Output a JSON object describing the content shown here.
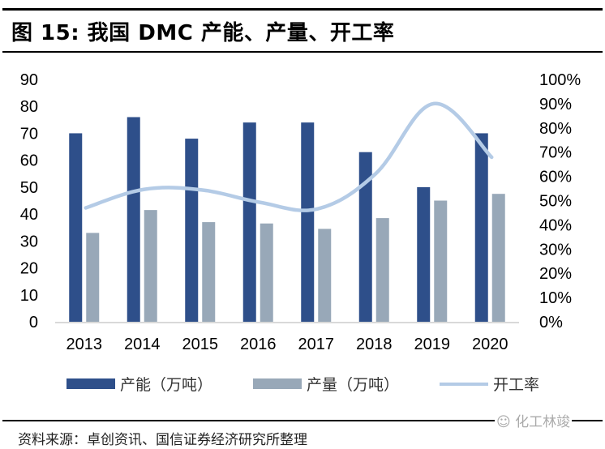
{
  "header": {
    "title": "图 15: 我国 DMC 产能、产量、开工率"
  },
  "chart_data": {
    "type": "bar",
    "title": "图 15: 我国 DMC 产能、产量、开工率",
    "xlabel": "",
    "ylabel": "",
    "y2label": "",
    "categories": [
      "2013",
      "2014",
      "2015",
      "2016",
      "2017",
      "2018",
      "2019",
      "2020"
    ],
    "series": [
      {
        "name": "产能（万吨）",
        "type": "bar",
        "axis": "left",
        "color": "#2E4F8A",
        "values": [
          70,
          76,
          68,
          74,
          74,
          63,
          50,
          70
        ]
      },
      {
        "name": "产量（万吨）",
        "type": "bar",
        "axis": "left",
        "color": "#98A8B8",
        "values": [
          33,
          41.5,
          37,
          36.5,
          34.5,
          38.5,
          45,
          47.5
        ]
      },
      {
        "name": "开工率",
        "type": "line",
        "axis": "right",
        "color": "#B4CBE6",
        "smooth": true,
        "values": [
          47,
          54.6,
          54.4,
          49.3,
          46.6,
          61.1,
          90,
          67.9
        ]
      }
    ],
    "ylim": [
      0,
      90
    ],
    "yticks": [
      "0",
      "10",
      "20",
      "30",
      "40",
      "50",
      "60",
      "70",
      "80",
      "90"
    ],
    "y2lim": [
      0,
      100
    ],
    "y2ticks": [
      "0%",
      "10%",
      "20%",
      "30%",
      "40%",
      "50%",
      "60%",
      "70%",
      "80%",
      "90%",
      "100%"
    ],
    "grid": false,
    "legend_position": "bottom"
  },
  "legend": {
    "items": [
      "产能（万吨）",
      "产量（万吨）",
      "开工率"
    ]
  },
  "footer": {
    "source": "资料来源：卓创资讯、国信证券经济研究所整理",
    "watermark": "化工林竣"
  }
}
